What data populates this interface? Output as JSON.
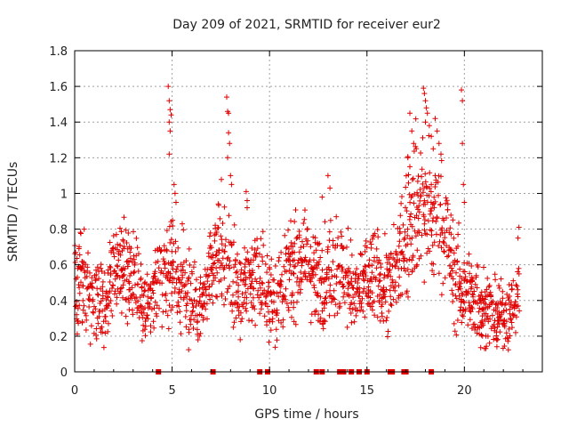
{
  "chart_data": {
    "type": "scatter",
    "title": "Day 209 of 2021, SRMTID for receiver eur2",
    "xlabel": "GPS time / hours",
    "ylabel": "SRMTID / TECUs",
    "xlim": [
      0,
      24
    ],
    "ylim": [
      0,
      1.8
    ],
    "xticks": [
      0,
      5,
      10,
      15,
      20
    ],
    "xtick_labels": [
      "0",
      "5",
      "10",
      "15",
      "20"
    ],
    "yticks": [
      0,
      0.2,
      0.4,
      0.6,
      0.8,
      1,
      1.2,
      1.4,
      1.6,
      1.8
    ],
    "ytick_labels": [
      "0",
      "0.2",
      "0.4",
      "0.6",
      "0.8",
      "1",
      "1.2",
      "1.4",
      "1.6",
      "1.8"
    ],
    "grid": true,
    "marker": "plus",
    "color": "#e00000",
    "series": [
      {
        "name": "SRMTID",
        "profile": [
          [
            0.0,
            0.52,
            0.12
          ],
          [
            0.5,
            0.5,
            0.13
          ],
          [
            1.0,
            0.42,
            0.13
          ],
          [
            1.5,
            0.38,
            0.12
          ],
          [
            2.0,
            0.55,
            0.13
          ],
          [
            2.5,
            0.58,
            0.13
          ],
          [
            3.0,
            0.5,
            0.14
          ],
          [
            3.5,
            0.32,
            0.1
          ],
          [
            4.0,
            0.45,
            0.12
          ],
          [
            4.5,
            0.55,
            0.13
          ],
          [
            5.0,
            0.62,
            0.16
          ],
          [
            5.5,
            0.5,
            0.13
          ],
          [
            6.0,
            0.4,
            0.13
          ],
          [
            6.5,
            0.35,
            0.1
          ],
          [
            7.0,
            0.55,
            0.12
          ],
          [
            7.5,
            0.7,
            0.15
          ],
          [
            8.0,
            0.55,
            0.15
          ],
          [
            8.5,
            0.42,
            0.12
          ],
          [
            9.0,
            0.55,
            0.13
          ],
          [
            9.5,
            0.5,
            0.12
          ],
          [
            10.0,
            0.42,
            0.12
          ],
          [
            10.5,
            0.45,
            0.13
          ],
          [
            11.0,
            0.55,
            0.14
          ],
          [
            11.5,
            0.62,
            0.14
          ],
          [
            12.0,
            0.62,
            0.14
          ],
          [
            12.5,
            0.5,
            0.13
          ],
          [
            13.0,
            0.55,
            0.14
          ],
          [
            13.5,
            0.6,
            0.15
          ],
          [
            14.0,
            0.5,
            0.13
          ],
          [
            14.5,
            0.45,
            0.12
          ],
          [
            15.0,
            0.5,
            0.13
          ],
          [
            15.5,
            0.55,
            0.13
          ],
          [
            16.0,
            0.45,
            0.12
          ],
          [
            16.5,
            0.55,
            0.13
          ],
          [
            17.0,
            0.8,
            0.18
          ],
          [
            17.5,
            0.95,
            0.2
          ],
          [
            18.0,
            0.9,
            0.2
          ],
          [
            18.5,
            0.85,
            0.2
          ],
          [
            19.0,
            0.8,
            0.18
          ],
          [
            19.5,
            0.55,
            0.15
          ],
          [
            20.0,
            0.45,
            0.13
          ],
          [
            20.5,
            0.42,
            0.12
          ],
          [
            21.0,
            0.38,
            0.11
          ],
          [
            21.5,
            0.3,
            0.09
          ],
          [
            22.0,
            0.3,
            0.09
          ],
          [
            22.5,
            0.35,
            0.1
          ],
          [
            22.8,
            0.45,
            0.12
          ]
        ],
        "spikes": [
          [
            4.8,
            1.6
          ],
          [
            4.85,
            1.52
          ],
          [
            4.9,
            1.47
          ],
          [
            4.95,
            1.44
          ],
          [
            4.85,
            1.4
          ],
          [
            4.9,
            1.35
          ],
          [
            4.85,
            1.22
          ],
          [
            5.1,
            1.05
          ],
          [
            5.15,
            1.0
          ],
          [
            5.2,
            0.95
          ],
          [
            7.8,
            1.54
          ],
          [
            7.85,
            1.46
          ],
          [
            7.9,
            1.45
          ],
          [
            7.9,
            1.34
          ],
          [
            7.95,
            1.28
          ],
          [
            7.85,
            1.2
          ],
          [
            8.0,
            1.1
          ],
          [
            8.05,
            1.05
          ],
          [
            8.8,
            1.01
          ],
          [
            8.85,
            0.96
          ],
          [
            8.85,
            0.92
          ],
          [
            13.0,
            1.1
          ],
          [
            13.1,
            1.03
          ],
          [
            12.7,
            0.98
          ],
          [
            17.2,
            1.45
          ],
          [
            17.3,
            1.35
          ],
          [
            17.4,
            1.28
          ],
          [
            17.1,
            1.2
          ],
          [
            17.2,
            1.15
          ],
          [
            17.9,
            1.59
          ],
          [
            17.95,
            1.56
          ],
          [
            18.0,
            1.52
          ],
          [
            18.05,
            1.48
          ],
          [
            18.1,
            1.45
          ],
          [
            18.0,
            1.4
          ],
          [
            18.2,
            1.38
          ],
          [
            18.3,
            1.32
          ],
          [
            18.4,
            1.25
          ],
          [
            18.5,
            1.42
          ],
          [
            18.6,
            1.35
          ],
          [
            18.7,
            1.28
          ],
          [
            18.8,
            1.22
          ],
          [
            18.5,
            1.1
          ],
          [
            18.3,
            1.05
          ],
          [
            19.85,
            1.58
          ],
          [
            19.9,
            1.52
          ],
          [
            19.9,
            1.28
          ],
          [
            19.95,
            1.05
          ],
          [
            20.0,
            0.95
          ],
          [
            22.8,
            0.81
          ],
          [
            22.75,
            0.75
          ]
        ],
        "zero_points": [
          4.3,
          7.1,
          9.5,
          9.9,
          12.4,
          12.7,
          13.6,
          13.8,
          14.2,
          14.6,
          15.0,
          16.2,
          16.3,
          16.9,
          17.0,
          18.3
        ]
      }
    ]
  }
}
